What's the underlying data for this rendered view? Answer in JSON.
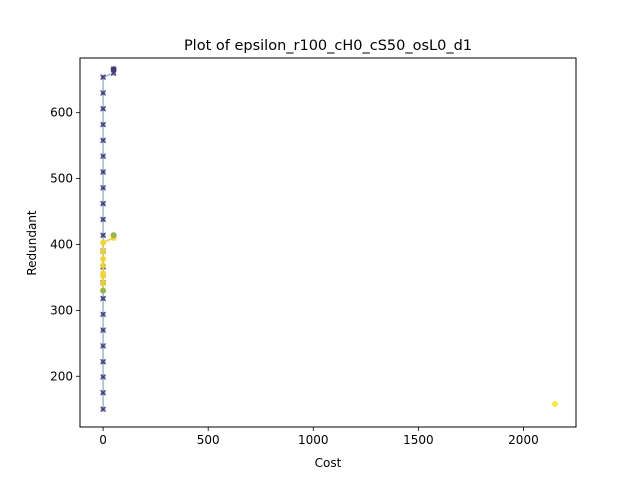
{
  "chart_data": {
    "type": "scatter",
    "title": "Plot of epsilon_r100_cH0_cS50_osL0_d1",
    "xlabel": "Cost",
    "ylabel": "Redundant",
    "xlim": [
      -110,
      2250
    ],
    "ylim": [
      123,
      683
    ],
    "xticks": [
      0,
      500,
      1000,
      1500,
      2000
    ],
    "yticks": [
      200,
      300,
      400,
      500,
      600
    ],
    "grid": false,
    "series": [
      {
        "color": "#a6bddb",
        "line": true,
        "marker": "x",
        "points": [
          {
            "x": 0,
            "y": 150
          },
          {
            "x": 0,
            "y": 175
          },
          {
            "x": 0,
            "y": 199
          },
          {
            "x": 0,
            "y": 222
          },
          {
            "x": 0,
            "y": 246
          },
          {
            "x": 0,
            "y": 270
          },
          {
            "x": 0,
            "y": 294
          },
          {
            "x": 0,
            "y": 318
          },
          {
            "x": 0,
            "y": 342
          },
          {
            "x": 0,
            "y": 366
          },
          {
            "x": 0,
            "y": 390
          },
          {
            "x": 0,
            "y": 414
          },
          {
            "x": 0,
            "y": 438
          },
          {
            "x": 0,
            "y": 462
          },
          {
            "x": 0,
            "y": 486
          },
          {
            "x": 0,
            "y": 510
          },
          {
            "x": 0,
            "y": 534
          },
          {
            "x": 0,
            "y": 558
          },
          {
            "x": 0,
            "y": 582
          },
          {
            "x": 0,
            "y": 606
          },
          {
            "x": 0,
            "y": 630
          },
          {
            "x": 0,
            "y": 654
          },
          {
            "x": 50,
            "y": 660
          },
          {
            "x": 50,
            "y": 666
          }
        ]
      },
      {
        "color": "#f2d230",
        "line": true,
        "marker": "o",
        "points": [
          {
            "x": 0,
            "y": 330
          },
          {
            "x": 0,
            "y": 342
          },
          {
            "x": 0,
            "y": 352
          },
          {
            "x": 0,
            "y": 356
          },
          {
            "x": 0,
            "y": 368
          },
          {
            "x": 0,
            "y": 378
          },
          {
            "x": 0,
            "y": 390
          },
          {
            "x": 0,
            "y": 403
          },
          {
            "x": 50,
            "y": 410
          },
          {
            "x": 50,
            "y": 414
          }
        ]
      },
      {
        "color": "#fde725",
        "line": false,
        "marker": "o",
        "points": [
          {
            "x": 2150,
            "y": 158
          }
        ]
      },
      {
        "color": "#8fb24a",
        "line": false,
        "marker": "o",
        "points": [
          {
            "x": 0,
            "y": 330
          },
          {
            "x": 50,
            "y": 414
          }
        ]
      },
      {
        "color": "#46337e",
        "line": false,
        "marker": "o",
        "points": [
          {
            "x": 50,
            "y": 666
          }
        ]
      }
    ]
  }
}
